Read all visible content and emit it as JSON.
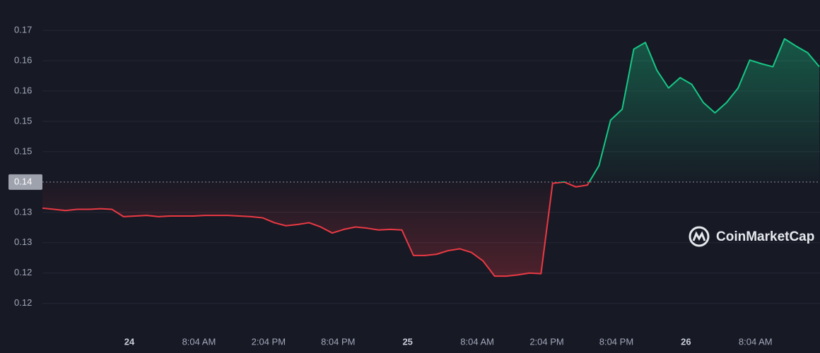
{
  "chart_data": {
    "type": "line",
    "x": [
      0,
      1,
      2,
      3,
      4,
      5,
      6,
      7,
      8,
      9,
      10,
      11,
      12,
      13,
      14,
      15,
      16,
      17,
      18,
      19,
      20,
      21,
      22,
      23,
      24,
      25,
      26,
      27,
      28,
      29,
      30,
      31,
      32,
      33,
      34,
      35,
      36,
      37,
      38,
      39,
      40,
      41,
      42,
      43,
      44,
      45,
      46,
      47,
      48,
      49,
      50,
      51,
      52,
      53,
      54,
      55,
      56,
      57,
      58,
      59,
      60,
      61,
      62,
      63,
      64,
      65,
      66,
      67
    ],
    "values": [
      0.1357,
      0.1355,
      0.1353,
      0.1355,
      0.1355,
      0.1356,
      0.1355,
      0.1343,
      0.1344,
      0.1345,
      0.1343,
      0.1344,
      0.1344,
      0.1344,
      0.1345,
      0.1345,
      0.1345,
      0.1344,
      0.1343,
      0.1341,
      0.1333,
      0.1328,
      0.133,
      0.1333,
      0.1326,
      0.1316,
      0.1322,
      0.1326,
      0.1324,
      0.1321,
      0.1322,
      0.1321,
      0.1279,
      0.1279,
      0.1281,
      0.1287,
      0.129,
      0.1284,
      0.127,
      0.1245,
      0.1245,
      0.1247,
      0.125,
      0.1249,
      0.1398,
      0.14,
      0.1392,
      0.1395,
      0.1427,
      0.1502,
      0.152,
      0.1619,
      0.163,
      0.1584,
      0.1555,
      0.1572,
      0.1561,
      0.1531,
      0.1514,
      0.1531,
      0.1555,
      0.1601,
      0.1595,
      0.159,
      0.1636,
      0.1624,
      0.1613,
      0.159
    ],
    "baseline": {
      "value": 0.14,
      "label": "0.14"
    },
    "up_color": "#16c784",
    "down_color": "#ea3943",
    "xlim": [
      0,
      67
    ],
    "xticks": [
      {
        "value": 7.5,
        "label": "24"
      },
      {
        "value": 13.5,
        "label": "8:04 AM"
      },
      {
        "value": 19.5,
        "label": "2:04 PM"
      },
      {
        "value": 25.5,
        "label": "8:04 PM"
      },
      {
        "value": 31.5,
        "label": "25"
      },
      {
        "value": 37.5,
        "label": "8:04 AM"
      },
      {
        "value": 43.5,
        "label": "2:04 PM"
      },
      {
        "value": 49.5,
        "label": "8:04 PM"
      },
      {
        "value": 55.5,
        "label": "26"
      },
      {
        "value": 61.5,
        "label": "8:04 AM"
      }
    ],
    "ylim": [
      0.1159,
      0.17
    ],
    "yticks": [
      0.12,
      {
        "value": 0.125,
        "label": "0.12"
      },
      0.13,
      {
        "value": 0.135,
        "label": "0.13"
      },
      {
        "value": 0.145,
        "label": "0.15"
      },
      0.15,
      {
        "value": 0.155,
        "label": "0.16"
      },
      0.16,
      {
        "value": 0.165,
        "label": "0.17"
      }
    ],
    "grid": true,
    "watermark": "CoinMarketCap"
  }
}
